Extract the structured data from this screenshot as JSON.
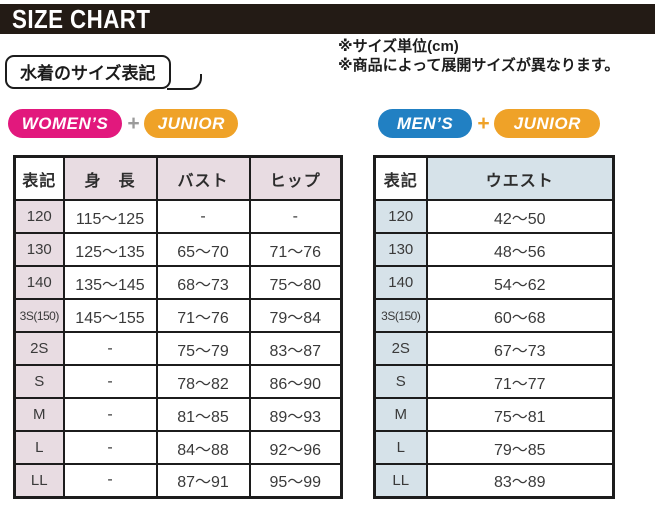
{
  "header": {
    "title": "SIZE CHART"
  },
  "notes": {
    "unit": "※サイズ単位(cm)",
    "availability": "※商品によって展開サイズが異なります。"
  },
  "section_label": "水着のサイズ表記",
  "badges": {
    "left": [
      {
        "label": "WOMEN’S",
        "color": "#e2187d"
      },
      {
        "label": "+",
        "color": "#9b9b9b"
      },
      {
        "label": "JUNIOR",
        "color": "#efa228"
      }
    ],
    "right": [
      {
        "label": "MEN’S",
        "color": "#2180c3"
      },
      {
        "label": "+",
        "color": "#efa228"
      },
      {
        "label": "JUNIOR",
        "color": "#efa228"
      }
    ]
  },
  "colors": {
    "title_bar_bg": "#231b15",
    "women_header_bg": "#e8dce2",
    "men_header_bg": "#d6e2e9",
    "table_border": "#1c1c1c"
  },
  "tables": {
    "women": {
      "headers": [
        "表記",
        "身　長",
        "バスト",
        "ヒップ"
      ],
      "rows": [
        [
          "120",
          "115〜125",
          "-",
          "-"
        ],
        [
          "130",
          "125〜135",
          "65〜70",
          "71〜76"
        ],
        [
          "140",
          "135〜145",
          "68〜73",
          "75〜80"
        ],
        [
          "3S(150)",
          "145〜155",
          "71〜76",
          "79〜84"
        ],
        [
          "2S",
          "-",
          "75〜79",
          "83〜87"
        ],
        [
          "S",
          "-",
          "78〜82",
          "86〜90"
        ],
        [
          "M",
          "-",
          "81〜85",
          "89〜93"
        ],
        [
          "L",
          "-",
          "84〜88",
          "92〜96"
        ],
        [
          "LL",
          "-",
          "87〜91",
          "95〜99"
        ]
      ]
    },
    "men": {
      "headers": [
        "表記",
        "ウエスト"
      ],
      "rows": [
        [
          "120",
          "42〜50"
        ],
        [
          "130",
          "48〜56"
        ],
        [
          "140",
          "54〜62"
        ],
        [
          "3S(150)",
          "60〜68"
        ],
        [
          "2S",
          "67〜73"
        ],
        [
          "S",
          "71〜77"
        ],
        [
          "M",
          "75〜81"
        ],
        [
          "L",
          "79〜85"
        ],
        [
          "LL",
          "83〜89"
        ]
      ]
    }
  }
}
